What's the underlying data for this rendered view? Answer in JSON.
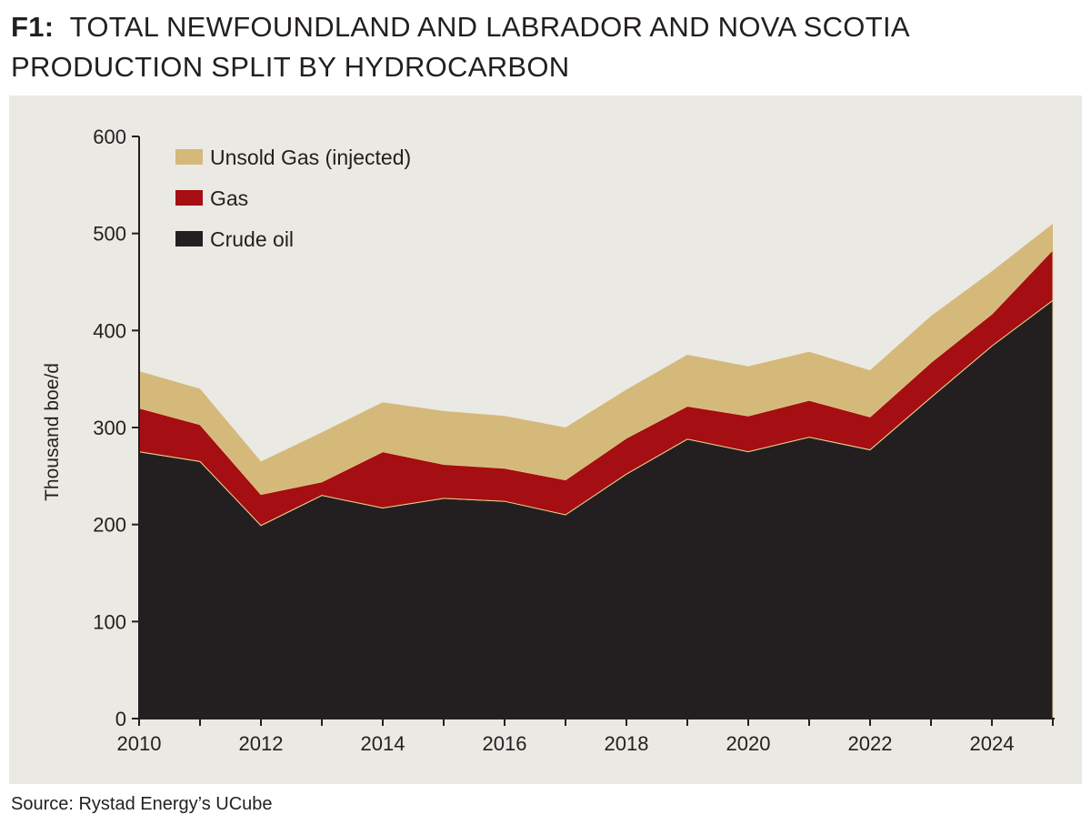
{
  "header": {
    "figure_label": "F1:",
    "title_line1": "TOTAL NEWFOUNDLAND AND LABRADOR AND NOVA SCOTIA",
    "title_line2": "PRODUCTION SPLIT BY HYDROCARBON"
  },
  "source": "Source: Rystad Energy’s UCube",
  "chart_data": {
    "type": "area",
    "stacked": true,
    "title": "TOTAL NEWFOUNDLAND AND LABRADOR AND NOVA SCOTIA PRODUCTION SPLIT BY HYDROCARBON",
    "xlabel": "",
    "ylabel": "Thousand boe/d",
    "ylim": [
      0,
      600
    ],
    "xlim": [
      2010,
      2025
    ],
    "yticks": [
      0,
      100,
      200,
      300,
      400,
      500,
      600
    ],
    "xticks": [
      2010,
      2012,
      2014,
      2016,
      2018,
      2020,
      2022,
      2024
    ],
    "grid": false,
    "legend_position": "top-left",
    "x": [
      2010,
      2011,
      2012,
      2013,
      2014,
      2015,
      2016,
      2017,
      2018,
      2019,
      2020,
      2021,
      2022,
      2023,
      2024,
      2025
    ],
    "series": [
      {
        "name": "Crude oil",
        "color": "#231f20",
        "values": [
          275,
          265,
          199,
          230,
          217,
          227,
          224,
          210,
          252,
          288,
          275,
          290,
          277,
          331,
          384,
          431
        ]
      },
      {
        "name": "Gas",
        "color": "#a50e12",
        "values": [
          45,
          38,
          32,
          14,
          58,
          35,
          34,
          36,
          37,
          34,
          37,
          38,
          34,
          36,
          33,
          52
        ]
      },
      {
        "name": "Unsold Gas (injected)",
        "color": "#d4b97a",
        "values": [
          38,
          37,
          34,
          51,
          51,
          55,
          54,
          54,
          50,
          53,
          51,
          50,
          48,
          48,
          44,
          27
        ]
      }
    ],
    "legend_order": [
      "Unsold Gas (injected)",
      "Gas",
      "Crude oil"
    ]
  }
}
